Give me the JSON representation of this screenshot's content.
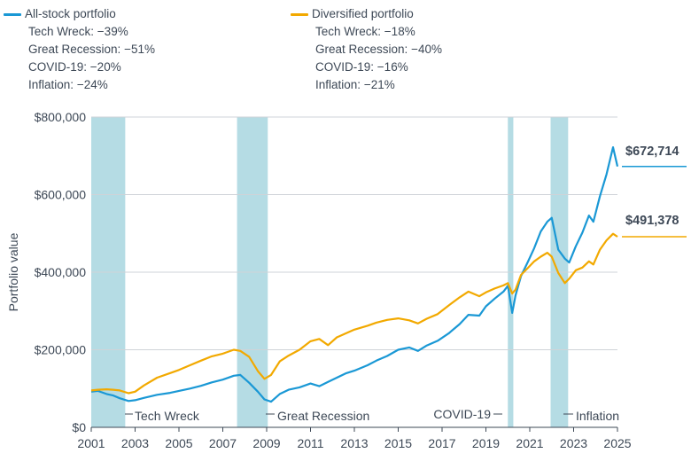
{
  "legend": [
    {
      "name": "All-stock portfolio",
      "color": "#1a98d5",
      "items": [
        {
          "label": "Tech Wreck:",
          "value": "−39%"
        },
        {
          "label": "Great Recession:",
          "value": "−51%"
        },
        {
          "label": "COVID-19:",
          "value": "−20%"
        },
        {
          "label": "Inflation:",
          "value": "−24%"
        }
      ]
    },
    {
      "name": "Diversified portfolio",
      "color": "#f2a900",
      "items": [
        {
          "label": "Tech Wreck:",
          "value": "−18%"
        },
        {
          "label": "Great Recession:",
          "value": "−40%"
        },
        {
          "label": "COVID-19:",
          "value": "−16%"
        },
        {
          "label": "Inflation:",
          "value": "−21%"
        }
      ]
    }
  ],
  "chart_data": {
    "type": "line",
    "title": "",
    "xlabel": "",
    "ylabel": "Portfolio value",
    "xlim": [
      2001,
      2025
    ],
    "ylim": [
      0,
      800000
    ],
    "x_ticks": [
      "2001",
      "2003",
      "2005",
      "2007",
      "2009",
      "2011",
      "2013",
      "2015",
      "2017",
      "2019",
      "2021",
      "2023",
      "2025"
    ],
    "y_ticks": [
      "$0",
      "$200,000",
      "$400,000",
      "$600,000",
      "$800,000"
    ],
    "y_tick_values": [
      0,
      200000,
      400000,
      600000,
      800000
    ],
    "shaded_periods": [
      {
        "label": "Tech Wreck",
        "start": 2001.0,
        "end": 2002.55
      },
      {
        "label": "Great Recession",
        "start": 2007.65,
        "end": 2009.05
      },
      {
        "label": "COVID-19",
        "start": 2020.0,
        "end": 2020.25
      },
      {
        "label": "Inflation",
        "start": 2021.95,
        "end": 2022.75
      }
    ],
    "end_labels": [
      "$672,714",
      "$491,378"
    ],
    "series": [
      {
        "name": "All-stock portfolio",
        "color": "#1a98d5",
        "x": [
          2001.0,
          2001.3,
          2001.7,
          2002.0,
          2002.3,
          2002.7,
          2003.0,
          2003.4,
          2004.0,
          2004.6,
          2005.0,
          2005.5,
          2006.0,
          2006.5,
          2007.0,
          2007.5,
          2007.8,
          2008.2,
          2008.6,
          2008.9,
          2009.2,
          2009.6,
          2010.0,
          2010.5,
          2011.0,
          2011.4,
          2011.8,
          2012.2,
          2012.6,
          2013.0,
          2013.6,
          2014.0,
          2014.5,
          2015.0,
          2015.5,
          2015.9,
          2016.3,
          2016.8,
          2017.3,
          2017.8,
          2018.2,
          2018.7,
          2019.0,
          2019.4,
          2019.8,
          2020.0,
          2020.2,
          2020.35,
          2020.6,
          2020.9,
          2021.2,
          2021.5,
          2021.8,
          2022.0,
          2022.3,
          2022.6,
          2022.8,
          2023.1,
          2023.4,
          2023.7,
          2023.9,
          2024.2,
          2024.5,
          2024.8,
          2025.0
        ],
        "values": [
          92000,
          94000,
          86000,
          82000,
          75000,
          68000,
          70000,
          76000,
          84000,
          89000,
          94000,
          100000,
          107000,
          116000,
          123000,
          133000,
          135000,
          115000,
          92000,
          72000,
          66000,
          86000,
          97000,
          103000,
          113000,
          106000,
          117000,
          128000,
          139000,
          146000,
          160000,
          172000,
          184000,
          200000,
          206000,
          197000,
          211000,
          223000,
          242000,
          266000,
          290000,
          288000,
          312000,
          332000,
          350000,
          365000,
          295000,
          340000,
          390000,
          425000,
          462000,
          505000,
          530000,
          540000,
          458000,
          435000,
          425000,
          467000,
          502000,
          546000,
          530000,
          596000,
          652000,
          722000,
          672714
        ]
      },
      {
        "name": "Diversified portfolio",
        "color": "#f2a900",
        "x": [
          2001.0,
          2001.3,
          2001.7,
          2002.0,
          2002.3,
          2002.7,
          2003.0,
          2003.4,
          2004.0,
          2004.6,
          2005.0,
          2005.5,
          2006.0,
          2006.5,
          2007.0,
          2007.5,
          2007.8,
          2008.2,
          2008.6,
          2008.9,
          2009.2,
          2009.6,
          2010.0,
          2010.5,
          2011.0,
          2011.4,
          2011.8,
          2012.2,
          2012.6,
          2013.0,
          2013.6,
          2014.0,
          2014.5,
          2015.0,
          2015.5,
          2015.9,
          2016.3,
          2016.8,
          2017.3,
          2017.8,
          2018.2,
          2018.7,
          2019.0,
          2019.4,
          2019.8,
          2020.0,
          2020.2,
          2020.35,
          2020.6,
          2020.9,
          2021.2,
          2021.5,
          2021.8,
          2022.0,
          2022.3,
          2022.6,
          2022.8,
          2023.1,
          2023.4,
          2023.7,
          2023.9,
          2024.2,
          2024.5,
          2024.8,
          2025.0
        ],
        "values": [
          95000,
          97000,
          98000,
          97000,
          95000,
          88000,
          92000,
          108000,
          128000,
          140000,
          148000,
          160000,
          172000,
          183000,
          190000,
          200000,
          197000,
          182000,
          145000,
          125000,
          135000,
          170000,
          185000,
          200000,
          222000,
          228000,
          212000,
          232000,
          242000,
          252000,
          262000,
          270000,
          277000,
          281000,
          276000,
          268000,
          280000,
          292000,
          314000,
          335000,
          350000,
          338000,
          348000,
          358000,
          366000,
          372000,
          345000,
          355000,
          393000,
          410000,
          428000,
          440000,
          450000,
          440000,
          398000,
          372000,
          383000,
          405000,
          412000,
          428000,
          420000,
          458000,
          482000,
          499000,
          491378
        ]
      }
    ]
  }
}
